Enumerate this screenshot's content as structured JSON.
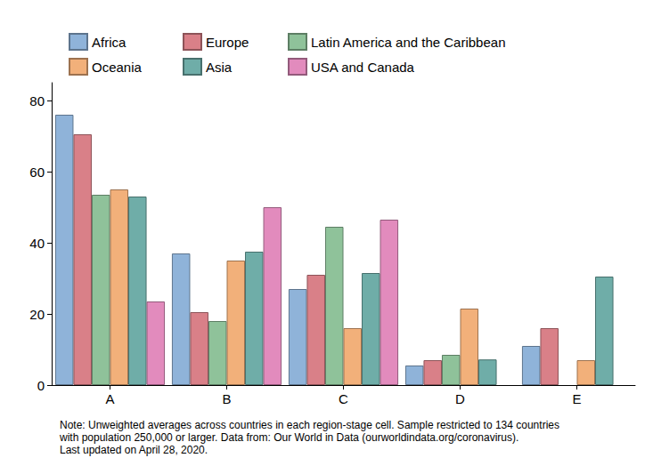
{
  "chart_data": {
    "type": "bar",
    "categories": [
      "A",
      "B",
      "C",
      "D",
      "E"
    ],
    "series": [
      {
        "name": "Africa",
        "color": "#8fb3d9",
        "values": [
          76,
          37,
          27,
          5.5,
          11
        ]
      },
      {
        "name": "Europe",
        "color": "#d98088",
        "values": [
          70.5,
          20.5,
          31,
          7,
          16
        ]
      },
      {
        "name": "Latin America and the Caribbean",
        "color": "#8fc29a",
        "values": [
          53.5,
          18,
          44.5,
          8.5,
          null
        ]
      },
      {
        "name": "Oceania",
        "color": "#f2b07a",
        "values": [
          55,
          35,
          16,
          21.5,
          7
        ]
      },
      {
        "name": "Asia",
        "color": "#6fada8",
        "values": [
          53,
          37.5,
          31.5,
          7.2,
          30.5
        ]
      },
      {
        "name": "USA and Canada",
        "color": "#e28bbd",
        "values": [
          23.5,
          50,
          46.5,
          null,
          null
        ]
      }
    ],
    "ylim": [
      0,
      85
    ],
    "yticks": [
      0,
      20,
      40,
      60,
      80
    ],
    "grid": false,
    "legend": "top-left",
    "note": "Note: Unweighted averages across countries in each region-stage cell. Sample restricted to 134 countries\nwith population 250,000 or larger. Data from: Our World in Data (ourworldindata.org/coronavirus).\nLast updated on April 28, 2020."
  }
}
